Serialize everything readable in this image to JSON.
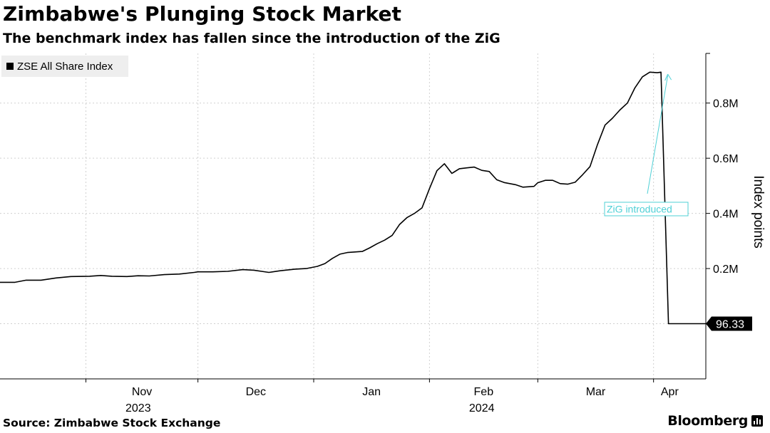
{
  "title": "Zimbabwe's Plunging Stock Market",
  "subtitle": "The benchmark index has fallen since the introduction of the ZiG",
  "source": "Source: Zimbabwe Stock Exchange",
  "brand": "Bloomberg",
  "brand_icon": "bloomberg-bars-icon",
  "colors": {
    "line": "#000000",
    "grid": "#d0d0d0",
    "annotation": "#4fd0d6",
    "legend_bg": "#eeeeee"
  },
  "chart_data": {
    "type": "line",
    "title": "Zimbabwe's Plunging Stock Market",
    "ylabel": "Index points",
    "xlabel": "",
    "ylim": [
      -200000,
      980000
    ],
    "yticks": [
      0,
      200000,
      400000,
      600000,
      800000
    ],
    "ytick_labels": [
      "",
      "0.2M",
      "0.4M",
      "0.6M",
      "0.8M"
    ],
    "x_start": "2023-10-09",
    "x_end": "2024-04-15",
    "month_ticks": [
      {
        "label": "Nov",
        "date": "2023-11-01"
      },
      {
        "label": "Dec",
        "date": "2023-12-01"
      },
      {
        "label": "Jan",
        "date": "2024-01-01"
      },
      {
        "label": "Feb",
        "date": "2024-02-01"
      },
      {
        "label": "Mar",
        "date": "2024-03-01"
      },
      {
        "label": "Apr",
        "date": "2024-04-01"
      }
    ],
    "year_labels": [
      {
        "label": "2023",
        "center_date": "2023-11-15"
      },
      {
        "label": "2024",
        "center_date": "2024-02-15"
      }
    ],
    "legend": [
      "ZSE All Share Index"
    ],
    "last_value": 96.33,
    "last_value_label": "96.33",
    "annotation": {
      "text": "ZiG introduced",
      "date": "2024-04-05",
      "value": 910000
    },
    "series": [
      {
        "name": "ZSE All Share Index",
        "points": [
          [
            "2023-10-09",
            150000
          ],
          [
            "2023-10-13",
            150000
          ],
          [
            "2023-10-16",
            158000
          ],
          [
            "2023-10-20",
            158000
          ],
          [
            "2023-10-24",
            166000
          ],
          [
            "2023-10-28",
            171000
          ],
          [
            "2023-11-02",
            172000
          ],
          [
            "2023-11-05",
            175000
          ],
          [
            "2023-11-08",
            172000
          ],
          [
            "2023-11-12",
            171000
          ],
          [
            "2023-11-15",
            174000
          ],
          [
            "2023-11-18",
            173000
          ],
          [
            "2023-11-22",
            178000
          ],
          [
            "2023-11-26",
            180000
          ],
          [
            "2023-11-30",
            186000
          ],
          [
            "2023-12-01",
            188000
          ],
          [
            "2023-12-05",
            188000
          ],
          [
            "2023-12-09",
            190000
          ],
          [
            "2023-12-13",
            196000
          ],
          [
            "2023-12-16",
            194000
          ],
          [
            "2023-12-20",
            186000
          ],
          [
            "2023-12-23",
            192000
          ],
          [
            "2023-12-27",
            198000
          ],
          [
            "2023-12-30",
            200000
          ],
          [
            "2024-01-02",
            208000
          ],
          [
            "2024-01-04",
            218000
          ],
          [
            "2024-01-06",
            237000
          ],
          [
            "2024-01-08",
            252000
          ],
          [
            "2024-01-10",
            258000
          ],
          [
            "2024-01-12",
            260000
          ],
          [
            "2024-01-14",
            262000
          ],
          [
            "2024-01-16",
            275000
          ],
          [
            "2024-01-18",
            290000
          ],
          [
            "2024-01-20",
            303000
          ],
          [
            "2024-01-22",
            320000
          ],
          [
            "2024-01-24",
            360000
          ],
          [
            "2024-01-26",
            385000
          ],
          [
            "2024-01-28",
            400000
          ],
          [
            "2024-01-30",
            420000
          ],
          [
            "2024-02-01",
            490000
          ],
          [
            "2024-02-03",
            555000
          ],
          [
            "2024-02-05",
            580000
          ],
          [
            "2024-02-07",
            545000
          ],
          [
            "2024-02-09",
            562000
          ],
          [
            "2024-02-11",
            565000
          ],
          [
            "2024-02-13",
            568000
          ],
          [
            "2024-02-15",
            556000
          ],
          [
            "2024-02-17",
            552000
          ],
          [
            "2024-02-19",
            522000
          ],
          [
            "2024-02-21",
            512000
          ],
          [
            "2024-02-24",
            504000
          ],
          [
            "2024-02-26",
            495000
          ],
          [
            "2024-02-29",
            498000
          ],
          [
            "2024-03-01",
            511000
          ],
          [
            "2024-03-03",
            520000
          ],
          [
            "2024-03-05",
            520000
          ],
          [
            "2024-03-07",
            508000
          ],
          [
            "2024-03-09",
            506000
          ],
          [
            "2024-03-11",
            513000
          ],
          [
            "2024-03-13",
            540000
          ],
          [
            "2024-03-15",
            570000
          ],
          [
            "2024-03-17",
            650000
          ],
          [
            "2024-03-19",
            720000
          ],
          [
            "2024-03-21",
            745000
          ],
          [
            "2024-03-23",
            775000
          ],
          [
            "2024-03-25",
            800000
          ],
          [
            "2024-03-27",
            855000
          ],
          [
            "2024-03-29",
            895000
          ],
          [
            "2024-03-31",
            912000
          ],
          [
            "2024-04-02",
            910000
          ],
          [
            "2024-04-03",
            912000
          ],
          [
            "2024-04-05",
            96.33
          ],
          [
            "2024-04-15",
            96.33
          ]
        ]
      }
    ]
  }
}
